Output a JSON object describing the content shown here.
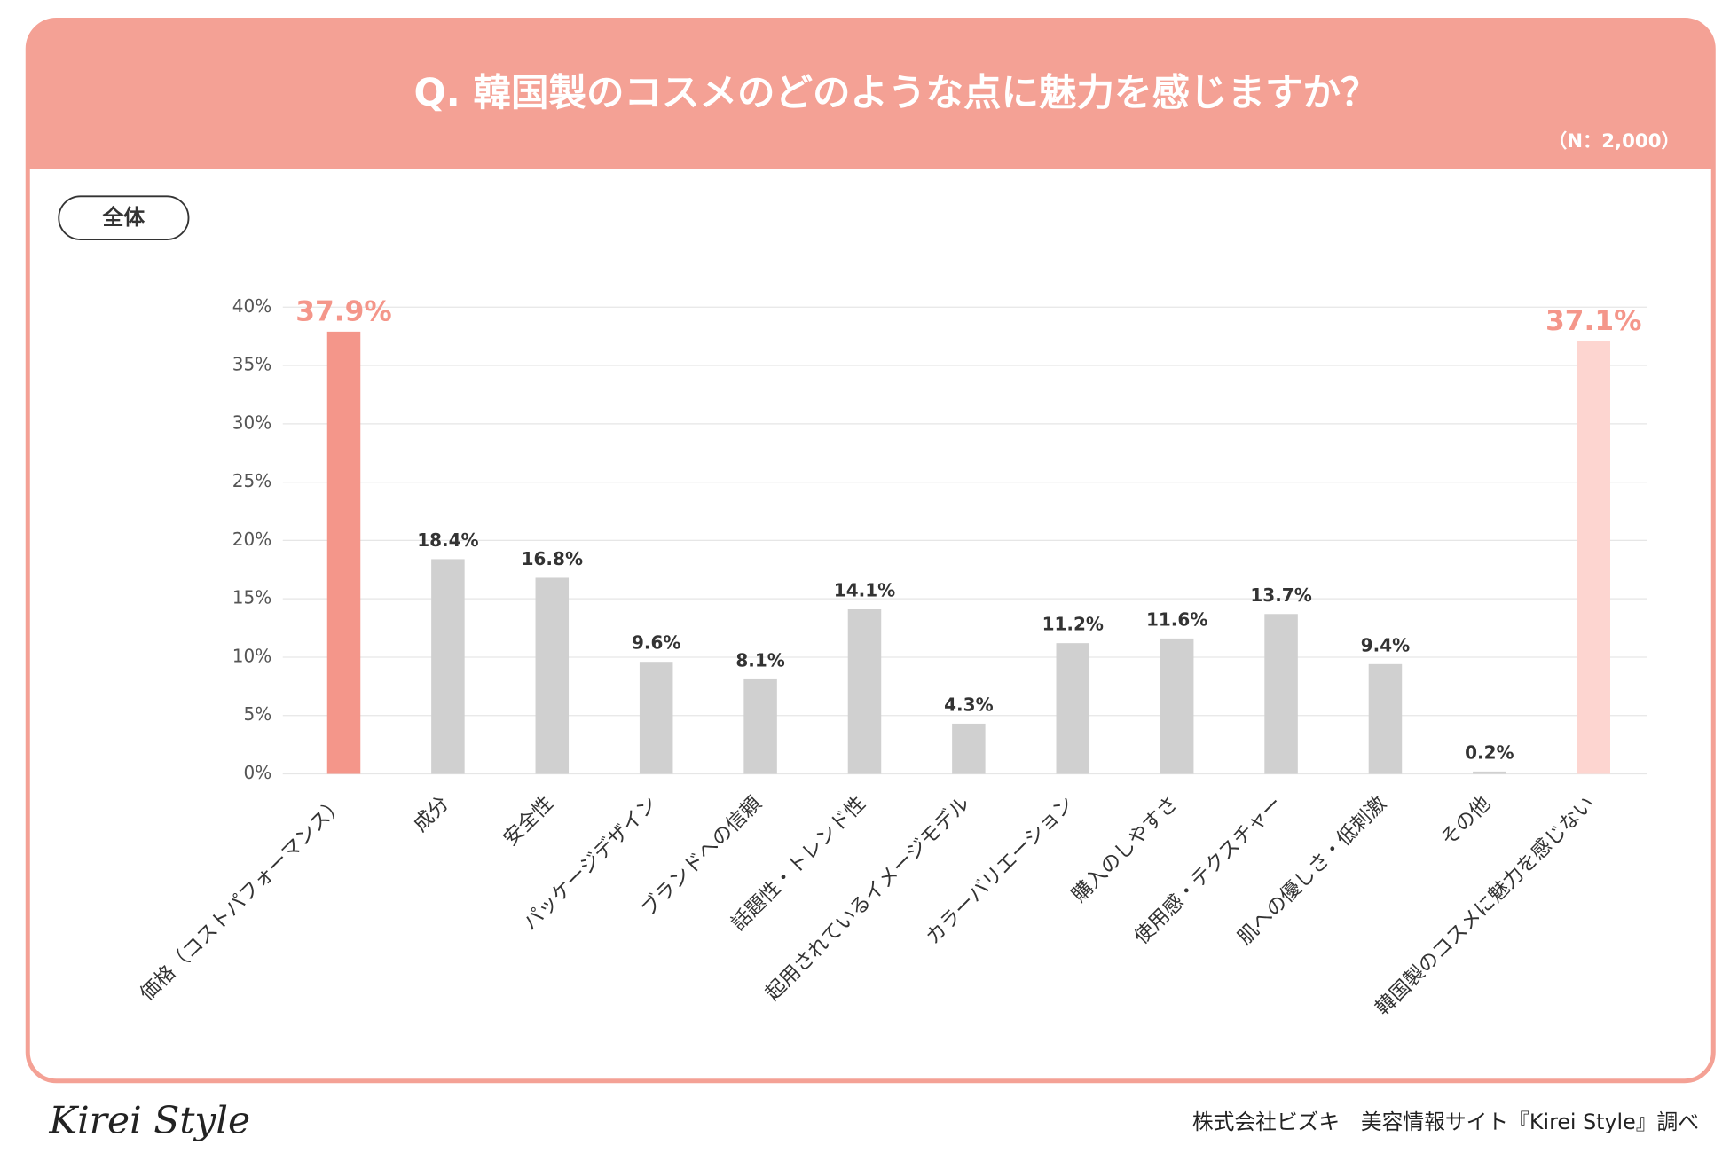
{
  "header": {
    "title": "Q. 韓国製のコスメのどのような点に魅力を感じますか？",
    "sample": "（N：2,000）"
  },
  "tab": "全体",
  "chart_data": {
    "type": "bar",
    "categories": [
      "価格（コストパフォーマンス）",
      "成分",
      "安全性",
      "パッケージデザイン",
      "ブランドへの信頼",
      "話題性・トレンド性",
      "起用されているイメージモデル",
      "カラーバリエーション",
      "購入のしやすさ",
      "使用感・テクスチャー",
      "肌への優しさ・低刺激",
      "その他",
      "韓国製のコスメに魅力を感じない"
    ],
    "values": [
      37.9,
      18.4,
      16.8,
      9.6,
      8.1,
      14.1,
      4.3,
      11.2,
      11.6,
      13.7,
      9.4,
      0.2,
      37.1
    ],
    "value_labels": [
      "37.9%",
      "18.4%",
      "16.8%",
      "9.6%",
      "8.1%",
      "14.1%",
      "4.3%",
      "11.2%",
      "11.6%",
      "13.7%",
      "9.4%",
      "0.2%",
      "37.1%"
    ],
    "colors": [
      "#f4968a",
      "#d0d0d0",
      "#d0d0d0",
      "#d0d0d0",
      "#d0d0d0",
      "#d0d0d0",
      "#d0d0d0",
      "#d0d0d0",
      "#d0d0d0",
      "#d0d0d0",
      "#d0d0d0",
      "#d0d0d0",
      "#fdd5d0"
    ],
    "ylim": [
      0,
      40
    ],
    "yticks": [
      {
        "value": 0,
        "label": "0%"
      },
      {
        "value": 5,
        "label": "5%"
      },
      {
        "value": 10,
        "label": "10%"
      },
      {
        "value": 15,
        "label": "15%"
      },
      {
        "value": 20,
        "label": "20%"
      },
      {
        "value": 25,
        "label": "25%"
      },
      {
        "value": 30,
        "label": "30%"
      },
      {
        "value": 35,
        "label": "35%"
      },
      {
        "value": 40,
        "label": "40%"
      }
    ],
    "grid": true
  },
  "footer": {
    "logo": "Kirei Style",
    "credit": "株式会社ビズキ　美容情報サイト『Kirei Style』調べ"
  }
}
